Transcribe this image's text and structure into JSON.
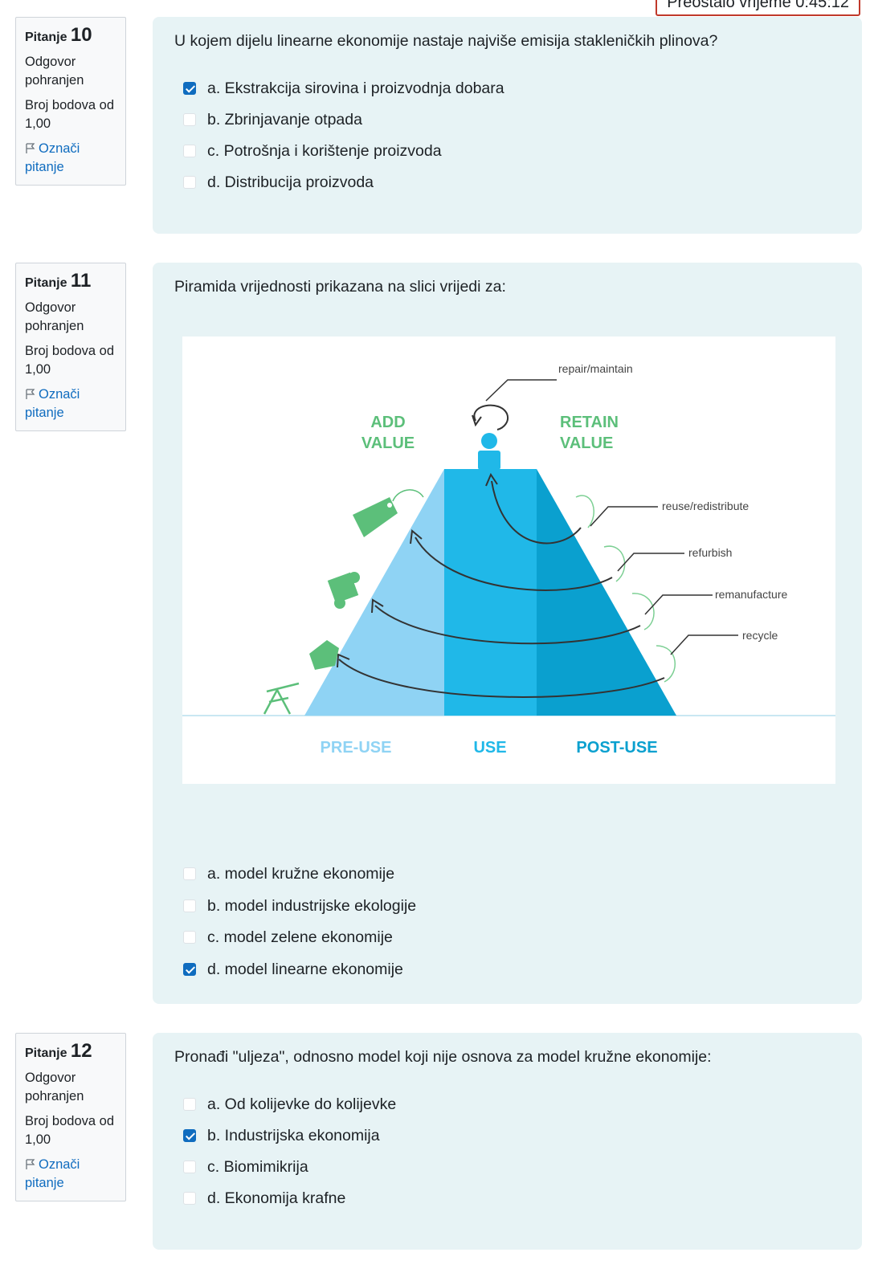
{
  "timer": {
    "text": "Preostalo vrijeme 0:45:12"
  },
  "questions": [
    {
      "label": "Pitanje",
      "number": "10",
      "state": "Odgovor pohranjen",
      "grade": "Broj bodova od 1,00",
      "flag": "Označi pitanje",
      "text": "U kojem dijelu linearne ekonomije nastaje najviše emisija stakleničkih plinova?",
      "options": [
        {
          "text": "a. Ekstrakcija sirovina i proizvodnja dobara",
          "checked": true
        },
        {
          "text": "b. Zbrinjavanje otpada",
          "checked": false
        },
        {
          "text": "c. Potrošnja i korištenje proizvoda",
          "checked": false
        },
        {
          "text": "d. Distribucija proizvoda",
          "checked": false
        }
      ]
    },
    {
      "label": "Pitanje",
      "number": "11",
      "state": "Odgovor pohranjen",
      "grade": "Broj bodova od 1,00",
      "flag": "Označi pitanje",
      "text": "Piramida vrijednosti prikazana na slici vrijedi za:",
      "figure": {
        "add_value": [
          "ADD",
          "VALUE"
        ],
        "retain_value": [
          "RETAIN",
          "VALUE"
        ],
        "repair": "repair/maintain",
        "reuse": "reuse/redistribute",
        "refurbish": "refurbish",
        "remanufacture": "remanufacture",
        "recycle": "recycle",
        "pre_use": "PRE-USE",
        "use": "USE",
        "post_use": "POST-USE"
      },
      "options": [
        {
          "text": "a. model kružne ekonomije",
          "checked": false
        },
        {
          "text": "b. model industrijske ekologije",
          "checked": false
        },
        {
          "text": "c. model zelene ekonomije",
          "checked": false
        },
        {
          "text": "d. model linearne ekonomije",
          "checked": true
        }
      ]
    },
    {
      "label": "Pitanje",
      "number": "12",
      "state": "Odgovor pohranjen",
      "grade": "Broj bodova od 1,00",
      "flag": "Označi pitanje",
      "text": "Pronađi \"uljeza\", odnosno model koji nije osnova za model kružne ekonomije:",
      "options": [
        {
          "text": "a. Od kolijevke do kolijevke",
          "checked": false
        },
        {
          "text": "b. Industrijska ekonomija",
          "checked": true
        },
        {
          "text": "c. Biomimikrija",
          "checked": false
        },
        {
          "text": "d. Ekonomija krafne",
          "checked": false
        }
      ]
    }
  ],
  "colors": {
    "accent": "#0f6cbf",
    "content_bg": "#e7f3f5",
    "pyramid_light": "#8fd3f4",
    "pyramid_mid": "#20b8e8",
    "pyramid_dark": "#0aa0cf",
    "green": "#5cbf7a"
  }
}
